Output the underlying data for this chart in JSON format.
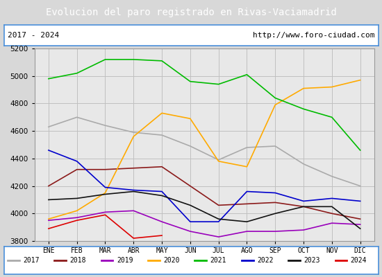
{
  "title": "Evolucion del paro registrado en Rivas-Vaciamadrid",
  "subtitle_left": "2017 - 2024",
  "subtitle_right": "http://www.foro-ciudad.com",
  "title_bg": "#4a8fda",
  "title_color": "white",
  "months": [
    "ENE",
    "FEB",
    "MAR",
    "ABR",
    "MAY",
    "JUN",
    "JUL",
    "AGO",
    "SEP",
    "OCT",
    "NOV",
    "DIC"
  ],
  "ylim": [
    3800,
    5200
  ],
  "yticks": [
    3800,
    4000,
    4200,
    4400,
    4600,
    4800,
    5000,
    5200
  ],
  "series": {
    "2017": {
      "color": "#aaaaaa",
      "data": [
        4630,
        4700,
        4640,
        4590,
        4570,
        4490,
        4390,
        4480,
        4490,
        4360,
        4270,
        4200
      ]
    },
    "2018": {
      "color": "#8b1a1a",
      "data": [
        4200,
        4320,
        4320,
        4330,
        4340,
        4200,
        4060,
        4070,
        4080,
        4050,
        4000,
        3960
      ]
    },
    "2019": {
      "color": "#9900bb",
      "data": [
        3950,
        3970,
        4010,
        4020,
        3940,
        3870,
        3830,
        3870,
        3870,
        3880,
        3930,
        3920
      ]
    },
    "2020": {
      "color": "#ffaa00",
      "data": [
        3960,
        4020,
        4150,
        4560,
        4730,
        4690,
        4380,
        4340,
        4790,
        4910,
        4920,
        4970
      ]
    },
    "2021": {
      "color": "#00bb00",
      "data": [
        4980,
        5020,
        5120,
        5120,
        5110,
        4960,
        4940,
        5010,
        4840,
        4760,
        4700,
        4460
      ]
    },
    "2022": {
      "color": "#0000cc",
      "data": [
        4460,
        4380,
        4190,
        4170,
        4160,
        3940,
        3940,
        4160,
        4150,
        4090,
        4110,
        4090
      ]
    },
    "2023": {
      "color": "#111111",
      "data": [
        4100,
        4110,
        4140,
        4160,
        4130,
        4060,
        3960,
        3940,
        4000,
        4050,
        4050,
        3890
      ]
    },
    "2024": {
      "color": "#dd0000",
      "data": [
        3890,
        3950,
        3990,
        3820,
        3840,
        null,
        null,
        null,
        null,
        null,
        null,
        null
      ]
    }
  },
  "bg_color": "#d8d8d8",
  "plot_bg": "#e8e8e8",
  "inner_bg": "#e8e8e8",
  "grid_color": "#c0c0c0",
  "border_color": "#4a8fda"
}
